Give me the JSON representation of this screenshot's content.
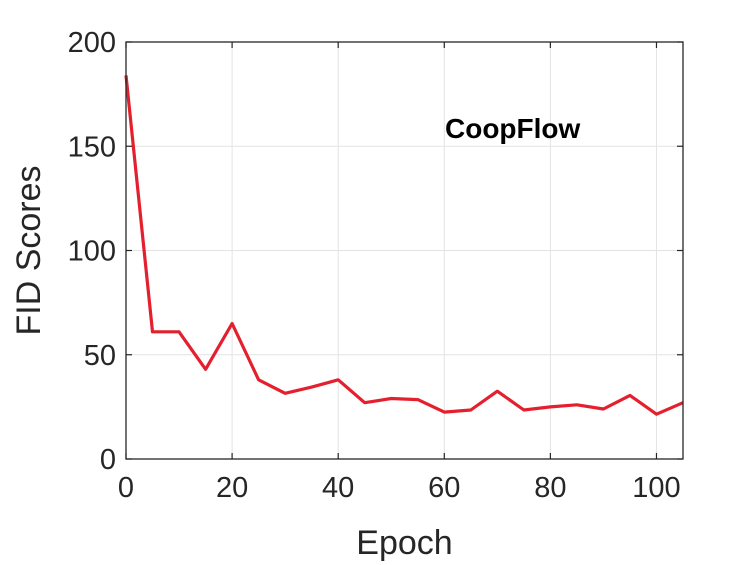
{
  "chart_data": {
    "type": "line",
    "title": "",
    "xlabel": "Epoch",
    "ylabel": "FID Scores",
    "annotation": "CoopFlow",
    "xlim": [
      0,
      105
    ],
    "ylim": [
      0,
      200
    ],
    "xticks": [
      0,
      20,
      40,
      60,
      80,
      100
    ],
    "yticks": [
      0,
      50,
      100,
      150,
      200
    ],
    "grid": true,
    "series": [
      {
        "color": "#e4202e",
        "x": [
          0,
          5,
          10,
          15,
          20,
          25,
          30,
          35,
          40,
          45,
          50,
          55,
          60,
          65,
          70,
          75,
          80,
          85,
          90,
          95,
          100,
          105
        ],
        "y": [
          184,
          61,
          61,
          43,
          65,
          38,
          31.5,
          34.5,
          38,
          27,
          29,
          28.5,
          22.5,
          23.5,
          32.5,
          23.5,
          25,
          26,
          24,
          30.5,
          21.5,
          27
        ]
      }
    ]
  }
}
